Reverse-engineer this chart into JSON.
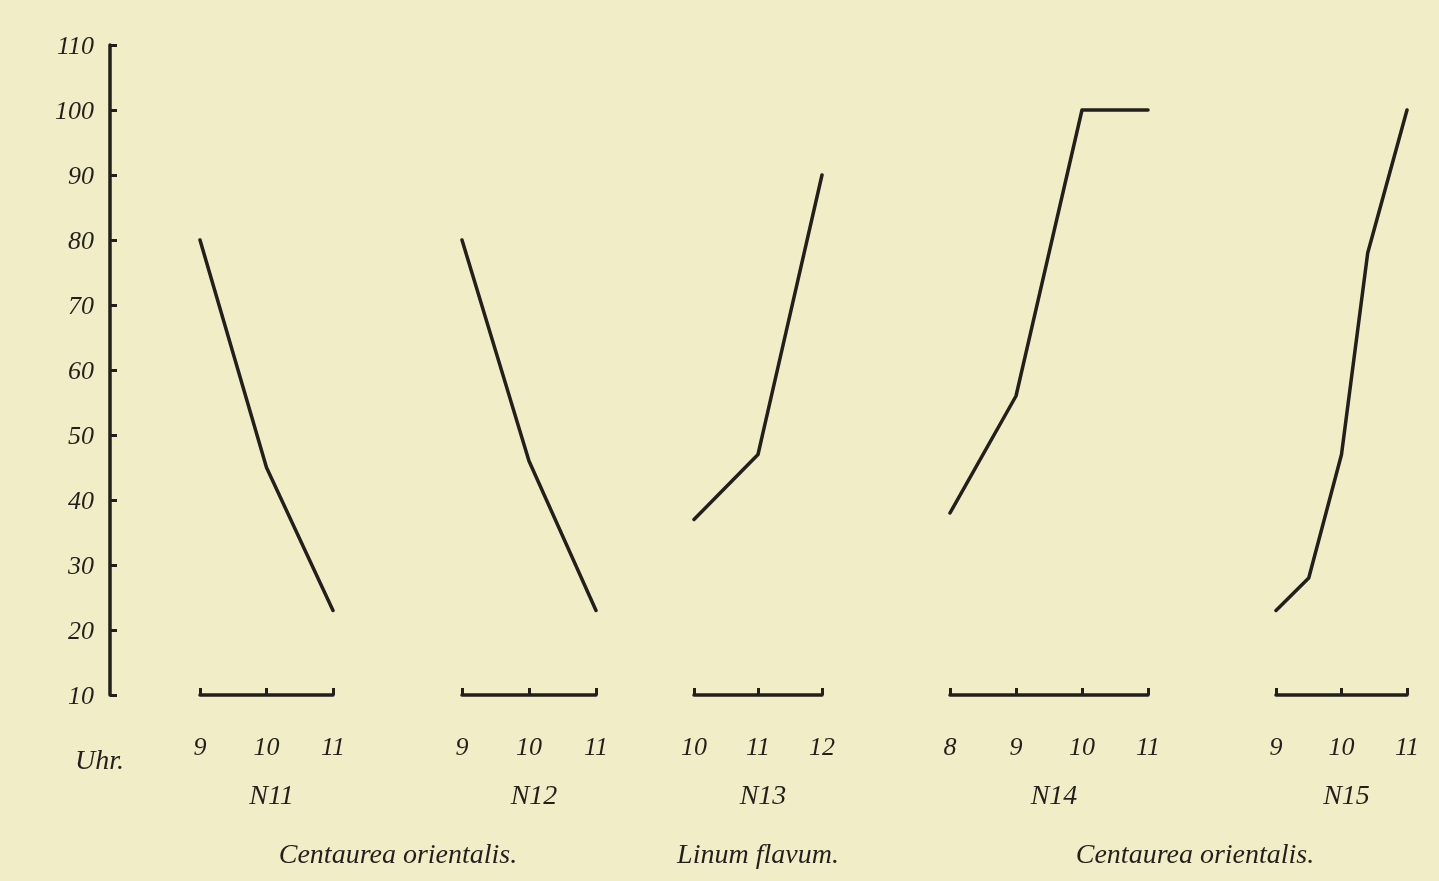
{
  "chart_data": [
    {
      "type": "line",
      "title": "N11",
      "xlabel": "Uhr.",
      "annotations": [
        "Centaurea orientalis."
      ],
      "x": [
        9,
        10,
        11
      ],
      "values": [
        80,
        45,
        23
      ],
      "color": "#231f1c",
      "xlim": [
        9,
        11
      ],
      "xticks": [
        9,
        10,
        11
      ],
      "ylim": [
        10,
        110
      ],
      "yticks": [
        10,
        20,
        30,
        40,
        50,
        60,
        70,
        80,
        90,
        100,
        110
      ],
      "marker": "none",
      "line_style": "solid",
      "grid": false
    },
    {
      "type": "line",
      "title": "N12",
      "x": [
        9,
        10,
        11
      ],
      "values": [
        80,
        46,
        23
      ],
      "color": "#231f1c",
      "xlim": [
        9,
        11
      ],
      "xticks": [
        9,
        10,
        11
      ],
      "ylim": [
        10,
        110
      ],
      "tick_labels": "x",
      "marker": "none",
      "line_style": "solid",
      "grid": false
    },
    {
      "type": "line",
      "title": "N13",
      "annotations": [
        "Linum flavum."
      ],
      "x": [
        10,
        11,
        12
      ],
      "values": [
        37,
        47,
        90
      ],
      "color": "#231f1c",
      "xlim": [
        10,
        12
      ],
      "xticks": [
        10,
        11,
        12
      ],
      "ylim": [
        10,
        110
      ],
      "tick_labels": "x",
      "marker": "none",
      "line_style": "solid",
      "grid": false
    },
    {
      "type": "line",
      "title": "N14",
      "annotations": [
        "Centaurea orientalis."
      ],
      "x": [
        8,
        9,
        10,
        11
      ],
      "values": [
        38,
        56,
        100,
        100
      ],
      "color": "#231f1c",
      "xlim": [
        8,
        11
      ],
      "xticks": [
        8,
        9,
        10,
        11
      ],
      "ylim": [
        10,
        110
      ],
      "tick_labels": "x",
      "marker": "none",
      "line_style": "solid",
      "grid": false
    },
    {
      "type": "line",
      "title": "N15",
      "x": [
        9,
        9.5,
        10,
        10.4,
        11
      ],
      "values": [
        23,
        28,
        47,
        78,
        100
      ],
      "color": "#231f1c",
      "xlim": [
        9,
        11
      ],
      "xticks": [
        9,
        10,
        11
      ],
      "ylim": [
        10,
        110
      ],
      "tick_labels": "x",
      "marker": "none",
      "line_style": "solid",
      "grid": false
    }
  ]
}
